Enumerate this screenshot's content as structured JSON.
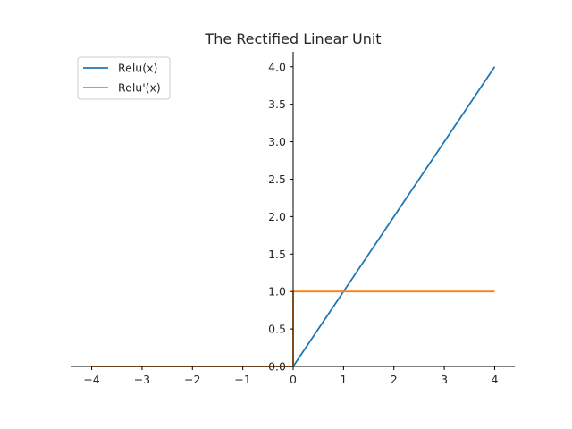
{
  "chart_data": {
    "type": "line",
    "title": "The Rectified Linear Unit",
    "xlabel": "",
    "ylabel": "",
    "xlim": [
      -4.4,
      4.4
    ],
    "ylim": [
      0.0,
      4.2
    ],
    "x_ticks": [
      -4,
      -3,
      -2,
      -1,
      0,
      1,
      2,
      3,
      4
    ],
    "x_tick_labels": [
      "−4",
      "−3",
      "−2",
      "−1",
      "0",
      "1",
      "2",
      "3",
      "4"
    ],
    "y_ticks": [
      0.0,
      0.5,
      1.0,
      1.5,
      2.0,
      2.5,
      3.0,
      3.5,
      4.0
    ],
    "y_tick_labels": [
      "0.0",
      "0.5",
      "1.0",
      "1.5",
      "2.0",
      "2.5",
      "3.0",
      "3.5",
      "4.0"
    ],
    "grid": false,
    "legend_position": "top-left",
    "spines": "centered-at-zero",
    "series": [
      {
        "name": "Relu(x)",
        "color": "#1f77b4",
        "x": [
          -4,
          0,
          4
        ],
        "y": [
          0,
          0,
          4
        ]
      },
      {
        "name": "Relu'(x)",
        "color": "#ff7f0e",
        "x": [
          -4,
          0,
          0,
          4
        ],
        "y": [
          0,
          0,
          1,
          1
        ]
      }
    ]
  }
}
